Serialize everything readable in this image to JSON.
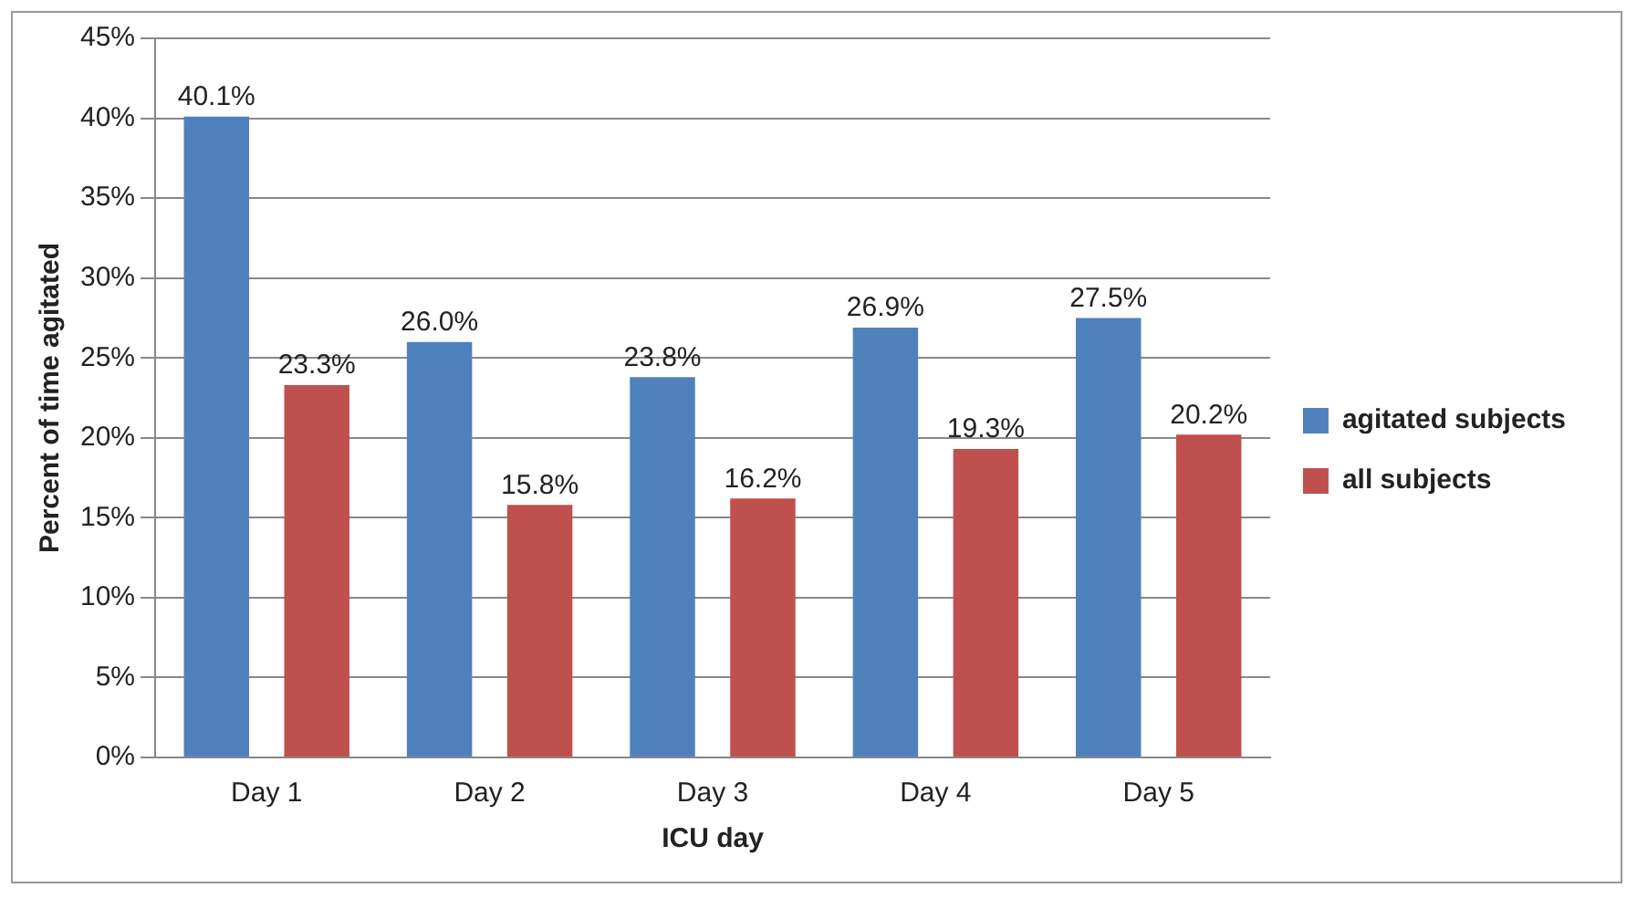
{
  "chart_data": {
    "type": "bar",
    "xlabel": "ICU day",
    "ylabel": "Percent of time agitated",
    "categories": [
      "Day 1",
      "Day 2",
      "Day 3",
      "Day 4",
      "Day 5"
    ],
    "series": [
      {
        "name": "agitated subjects",
        "color": "#4f81bd",
        "values": [
          40.1,
          26.0,
          23.8,
          26.9,
          27.5
        ],
        "value_labels": [
          "40.1%",
          "26.0%",
          "23.8%",
          "26.9%",
          "27.5%"
        ]
      },
      {
        "name": "all subjects",
        "color": "#c0504d",
        "values": [
          23.3,
          15.8,
          16.2,
          19.3,
          20.2
        ],
        "value_labels": [
          "23.3%",
          "15.8%",
          "16.2%",
          "19.3%",
          "20.2%"
        ]
      }
    ],
    "ylim": [
      0,
      45
    ],
    "yticks": [
      {
        "value": 0,
        "label": "0%"
      },
      {
        "value": 5,
        "label": "5%"
      },
      {
        "value": 10,
        "label": "10%"
      },
      {
        "value": 15,
        "label": "15%"
      },
      {
        "value": 20,
        "label": "20%"
      },
      {
        "value": 25,
        "label": "25%"
      },
      {
        "value": 30,
        "label": "30%"
      },
      {
        "value": 35,
        "label": "35%"
      },
      {
        "value": 40,
        "label": "40%"
      },
      {
        "value": 45,
        "label": "45%"
      }
    ],
    "grid": "y",
    "legend": "right"
  }
}
